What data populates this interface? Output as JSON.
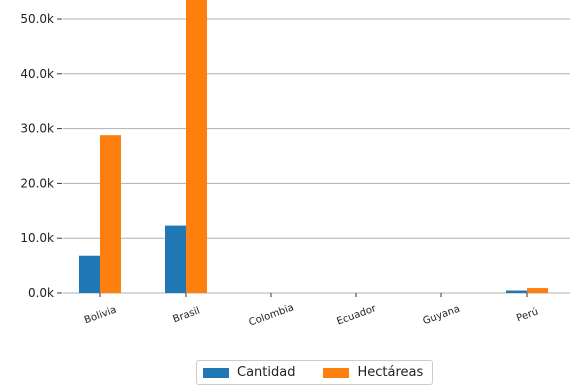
{
  "chart_data": {
    "type": "bar",
    "categories": [
      "Bolivia",
      "Brasil",
      "Colombia",
      "Ecuador",
      "Guyana",
      "Perú"
    ],
    "series": [
      {
        "name": "Cantidad",
        "color": "#1f77b4",
        "values": [
          6800,
          12300,
          0,
          0,
          0,
          450
        ]
      },
      {
        "name": "Hectáreas",
        "color": "#ff7f0e",
        "values": [
          28800,
          53500,
          0,
          0,
          0,
          900
        ]
      }
    ],
    "yticks": [
      "0.0k",
      "10.0k",
      "20.0k",
      "30.0k",
      "40.0k",
      "50.0k"
    ],
    "ylim": [
      0,
      53500
    ],
    "grid": true,
    "legend_position": "bottom-center",
    "title": "",
    "xlabel": "",
    "ylabel": ""
  }
}
